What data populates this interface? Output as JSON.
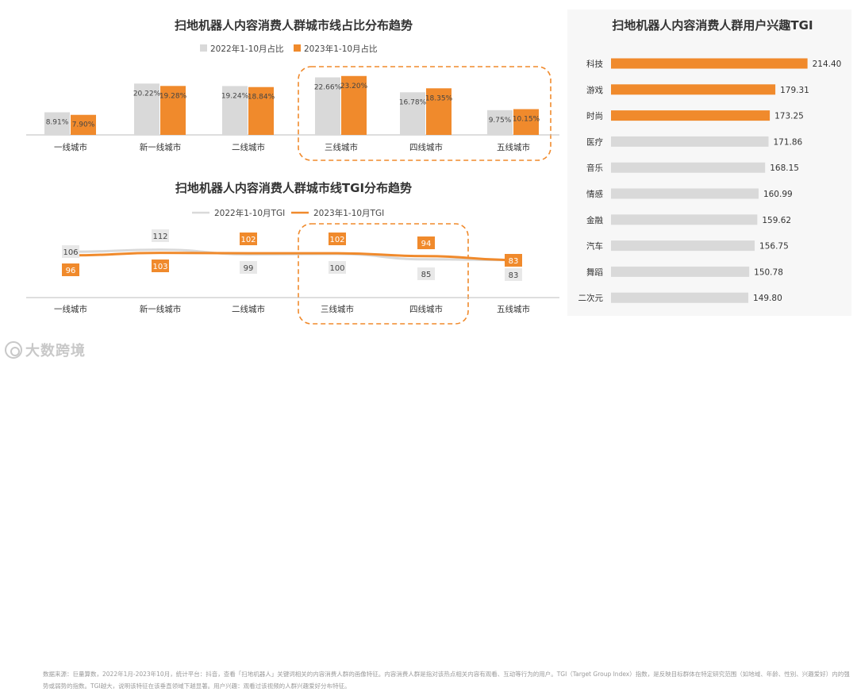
{
  "chart_data": [
    {
      "type": "bar",
      "title": "扫地机器人内容消费人群城市线占比分布趋势",
      "categories": [
        "一线城市",
        "新一线城市",
        "二线城市",
        "三线城市",
        "四线城市",
        "五线城市"
      ],
      "series": [
        {
          "name": "2022年1-10月占比",
          "values": [
            8.91,
            20.22,
            19.24,
            22.66,
            16.78,
            9.75
          ],
          "labels": [
            "8.91%",
            "20.22%",
            "19.24%",
            "22.66%",
            "16.78%",
            "9.75%"
          ],
          "color": "#d9d9d9"
        },
        {
          "name": "2023年1-10月占比",
          "values": [
            7.9,
            19.28,
            18.84,
            23.2,
            18.35,
            10.15
          ],
          "labels": [
            "7.90%",
            "19.28%",
            "18.84%",
            "23.20%",
            "18.35%",
            "10.15%"
          ],
          "color": "#f08a2c"
        }
      ],
      "highlight": [
        "三线城市",
        "四线城市",
        "五线城市"
      ]
    },
    {
      "type": "line",
      "title": "扫地机器人内容消费人群城市线TGI分布趋势",
      "categories": [
        "一线城市",
        "新一线城市",
        "二线城市",
        "三线城市",
        "四线城市",
        "五线城市"
      ],
      "series": [
        {
          "name": "2022年1-10月TGI",
          "values": [
            106,
            112,
            99,
            100,
            85,
            83
          ],
          "color": "#d9d9d9"
        },
        {
          "name": "2023年1-10月TGI",
          "values": [
            96,
            103,
            102,
            102,
            94,
            83
          ],
          "color": "#f08a2c"
        }
      ],
      "highlight": [
        "三线城市",
        "四线城市"
      ]
    },
    {
      "type": "bar",
      "orientation": "horizontal",
      "title": "扫地机器人内容消费人群用户兴趣TGI",
      "categories": [
        "科技",
        "游戏",
        "时尚",
        "医疗",
        "音乐",
        "情感",
        "金融",
        "汽车",
        "舞蹈",
        "二次元"
      ],
      "values": [
        214.4,
        179.31,
        173.25,
        171.86,
        168.15,
        160.99,
        159.62,
        156.75,
        150.78,
        149.8
      ],
      "labels": [
        "214.40",
        "179.31",
        "173.25",
        "171.86",
        "168.15",
        "160.99",
        "159.62",
        "156.75",
        "150.78",
        "149.80"
      ],
      "highlight_count": 3,
      "colors": {
        "highlight": "#f08a2c",
        "normal": "#d9d9d9"
      }
    }
  ],
  "footer": {
    "text": "数据来源：巨量算数，2022年1月-2023年10月，统计平台：抖音，查看「扫地机器人」关键词相关的内容消费人群的画像特征。内容消费人群是指对该热点相关内容有观看、互动等行为的用户。TGI（Target Group Index）指数，是反映目标群体在特定研究范围（如地域、年龄、性别、兴趣爱好）内的强势或弱势的指数。TGI越大，说明该特征在该垂直领域下越显著。用户兴趣：观看过该视频的人群兴趣爱好分布特征。",
    "logo": "大数跨境"
  }
}
